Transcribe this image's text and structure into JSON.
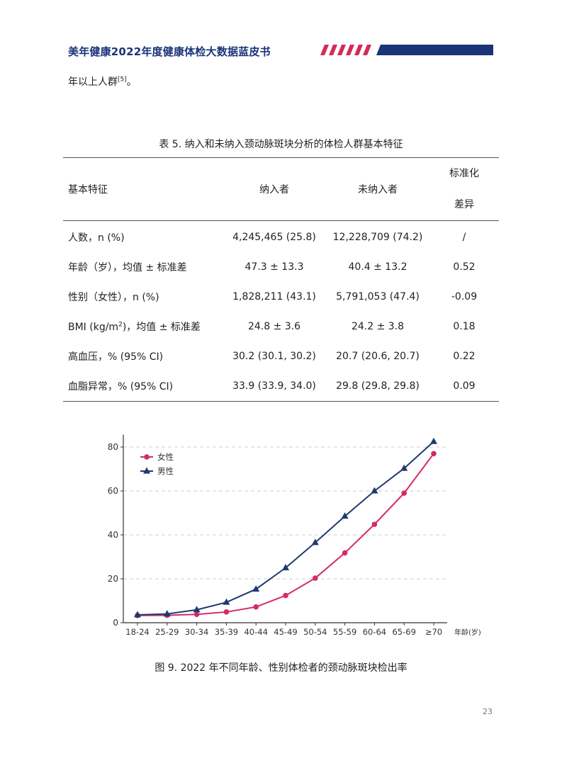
{
  "header": {
    "title": "美年健康2022年度健康体检大数据蓝皮书",
    "colors": {
      "navy": "#1a3478",
      "crimson": "#d42a5c"
    }
  },
  "body_text": {
    "text": "年以上人群",
    "ref": "[5]",
    "end": "。"
  },
  "table": {
    "title": "表 5. 纳入和未纳入颈动脉斑块分析的体检人群基本特征",
    "headers": {
      "feature": "基本特征",
      "included": "纳入者",
      "excluded": "未纳入者",
      "smd_line1": "标准化",
      "smd_line2": "差异"
    },
    "rows": [
      {
        "feature": "人数，n (%)",
        "included": "4,245,465 (25.8)",
        "excluded": "12,228,709 (74.2)",
        "smd": "/"
      },
      {
        "feature": "年龄（岁），均值 ± 标准差",
        "included": "47.3 ± 13.3",
        "excluded": "40.4 ± 13.2",
        "smd": "0.52"
      },
      {
        "feature": "性别（女性），n (%)",
        "included": "1,828,211 (43.1)",
        "excluded": "5,791,053 (47.4)",
        "smd": "-0.09"
      },
      {
        "feature_pre": "BMI (kg/m",
        "feature_sup": "2",
        "feature_post": ")，均值 ± 标准差",
        "included": "24.8 ± 3.6",
        "excluded": "24.2 ± 3.8",
        "smd": "0.18"
      },
      {
        "feature": "高血压，% (95% CI)",
        "included": "30.2 (30.1, 30.2)",
        "excluded": "20.7 (20.6, 20.7)",
        "smd": "0.22"
      },
      {
        "feature": "血脂异常，% (95% CI)",
        "included": "33.9 (33.9, 34.0)",
        "excluded": "29.8 (29.8, 29.8)",
        "smd": "0.09"
      }
    ]
  },
  "chart_data": {
    "type": "line",
    "xlabel": "年龄(岁)",
    "ylabel": "",
    "categories": [
      "18-24",
      "25-29",
      "30-34",
      "35-39",
      "40-44",
      "45-49",
      "50-54",
      "55-59",
      "60-64",
      "65-69",
      "≥70"
    ],
    "ylim": [
      0,
      85
    ],
    "yticks": [
      0,
      20,
      40,
      60,
      80
    ],
    "grid": "horizontal dashed",
    "legend_position": "top-left",
    "series": [
      {
        "name": "女性",
        "marker": "circle",
        "color": "#d42a6a",
        "values": [
          3.3,
          3.4,
          3.8,
          4.9,
          7.2,
          12.4,
          20.3,
          31.8,
          44.8,
          59.0,
          77.0
        ]
      },
      {
        "name": "男性",
        "marker": "triangle",
        "color": "#1f3a6e",
        "values": [
          3.6,
          4.0,
          5.9,
          9.3,
          15.3,
          25.0,
          36.5,
          48.5,
          60.0,
          70.3,
          82.5
        ]
      }
    ]
  },
  "caption": "图 9. 2022 年不同年龄、性别体检者的颈动脉斑块检出率",
  "page_number": "23"
}
